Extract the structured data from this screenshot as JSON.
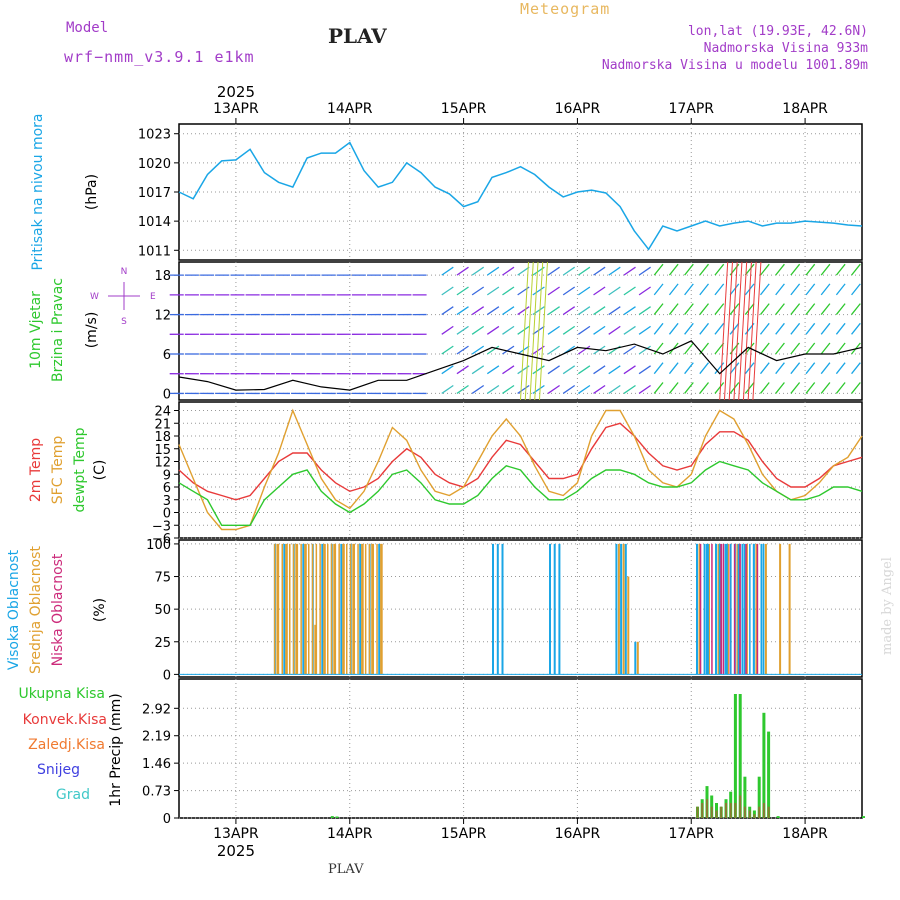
{
  "header": {
    "model_label": "Model",
    "model_name": "wrf−nmm_v3.9.1 e1km",
    "station": "PLAV",
    "meteogram": "Meteogram",
    "lonlat": "lon,lat (19.93E, 42.6N)",
    "altitude": "Nadmorska Visina 933m",
    "altitude_model": "Nadmorska Visina u modelu 1001.89m"
  },
  "footer": {
    "station": "PLAV",
    "credit": "made by Angel"
  },
  "time_axis": {
    "year": "2025",
    "days": [
      "13APR",
      "14APR",
      "15APR",
      "16APR",
      "17APR",
      "18APR"
    ],
    "start_hour": 0,
    "end_hour": 144,
    "first_day_offset_h": 12
  },
  "colors": {
    "pressure": "#1aa6e6",
    "temp2m": "#e83a3a",
    "sfctemp": "#e0a030",
    "dewpt": "#2ec82e",
    "cloud_high": "#1aa6e6",
    "cloud_mid": "#e0a030",
    "cloud_low": "#cc2a7a",
    "precip_total": "#2ec82e",
    "precip_conv": "#e83a3a",
    "precip_frozen": "#f07a30",
    "snow": "#4040e0",
    "hail": "#40c8c8",
    "wind": "#000000"
  },
  "panels": {
    "pressure": {
      "ylabel": "Pritisak na nivou mora",
      "unit": "(hPa)",
      "ticks": [
        "1011",
        "1014",
        "1017",
        "1020",
        "1023"
      ]
    },
    "wind": {
      "ylabel1": "10m Vjetar",
      "ylabel2": "Brzina i Pravac",
      "unit": "(m/s)",
      "ticks": [
        "0",
        "6",
        "12",
        "18"
      ],
      "compass": {
        "n": "N",
        "s": "S",
        "w": "W",
        "e": "E"
      }
    },
    "temp": {
      "ylabel1": "2m Temp",
      "ylabel2": "SFC Temp",
      "ylabel3": "dewpt Temp",
      "unit": "(C)",
      "ticks": [
        "−6",
        "−3",
        "0",
        "3",
        "6",
        "9",
        "12",
        "15",
        "18",
        "21",
        "24"
      ]
    },
    "cloud": {
      "ylabel1": "Visoka Oblacnost",
      "ylabel2": "Srednja Oblacnost",
      "ylabel3": "Niska Oblacnost",
      "unit": "(%)",
      "ticks": [
        "0",
        "25",
        "50",
        "75",
        "100"
      ]
    },
    "precip": {
      "ylabel": "1hr Precip (mm)",
      "ticks": [
        "0",
        "0.73",
        "1.46",
        "2.19",
        "2.92"
      ],
      "legend": [
        "Ukupna Kisa",
        "Konvek.Kisa",
        "Zaledj.Kisa",
        "Snijeg",
        "Grad"
      ]
    }
  },
  "chart_data": [
    {
      "type": "line",
      "title": "Pritisak na nivou mora",
      "ylabel": "(hPa)",
      "ylim": [
        1010,
        1024
      ],
      "x": [
        0,
        3,
        6,
        9,
        12,
        15,
        18,
        21,
        24,
        27,
        30,
        33,
        36,
        39,
        42,
        45,
        48,
        51,
        54,
        57,
        60,
        63,
        66,
        69,
        72,
        75,
        78,
        81,
        84,
        87,
        90,
        93,
        96,
        99,
        102,
        105,
        108,
        111,
        114,
        117,
        120,
        123,
        126,
        129,
        132,
        135,
        138,
        141,
        144
      ],
      "series": [
        {
          "name": "slp",
          "values": [
            1017,
            1016.3,
            1018.8,
            1020.2,
            1020.3,
            1021.4,
            1019,
            1018,
            1017.5,
            1020.5,
            1021,
            1021,
            1022.1,
            1019.2,
            1017.5,
            1018,
            1020,
            1019,
            1017.5,
            1016.8,
            1015.5,
            1016,
            1018.5,
            1019,
            1019.6,
            1018.8,
            1017.5,
            1016.5,
            1017,
            1017.2,
            1016.9,
            1015.5,
            1013,
            1011.1,
            1013.5,
            1013,
            1013.5,
            1014,
            1013.5,
            1013.8,
            1014,
            1013.5,
            1013.8,
            1013.8,
            1014,
            1013.9,
            1013.8,
            1013.6,
            1013.5
          ]
        }
      ]
    },
    {
      "type": "line",
      "title": "10m Vjetar Brzina i Pravac",
      "ylabel": "(m/s)",
      "ylim": [
        -1,
        20
      ],
      "x": [
        0,
        6,
        12,
        18,
        24,
        30,
        36,
        42,
        48,
        54,
        60,
        66,
        72,
        78,
        84,
        90,
        96,
        102,
        108,
        114,
        120,
        126,
        132,
        138,
        144
      ],
      "series": [
        {
          "name": "speed",
          "values": [
            2.5,
            1.8,
            0.5,
            0.6,
            2,
            1,
            0.5,
            2,
            2,
            3.5,
            5,
            7,
            6,
            5,
            7,
            6.5,
            7.5,
            6,
            8,
            3,
            7,
            5,
            6,
            6,
            7
          ]
        }
      ]
    },
    {
      "type": "line",
      "title": "2m Temp / SFC Temp / dewpt Temp",
      "ylabel": "(C)",
      "ylim": [
        -6,
        26
      ],
      "x": [
        0,
        3,
        6,
        9,
        12,
        15,
        18,
        21,
        24,
        27,
        30,
        33,
        36,
        39,
        42,
        45,
        48,
        51,
        54,
        57,
        60,
        63,
        66,
        69,
        72,
        75,
        78,
        81,
        84,
        87,
        90,
        93,
        96,
        99,
        102,
        105,
        108,
        111,
        114,
        117,
        120,
        123,
        126,
        129,
        132,
        135,
        138,
        141,
        144
      ],
      "series": [
        {
          "name": "2m Temp",
          "values": [
            10,
            7,
            5,
            4,
            3,
            4,
            8,
            12,
            14,
            14,
            10,
            7,
            5,
            6,
            8,
            12,
            15,
            13,
            9,
            7,
            6,
            8,
            13,
            17,
            16,
            12,
            8,
            8,
            9,
            15,
            20,
            21,
            18,
            14,
            11,
            10,
            11,
            16,
            19,
            19,
            17,
            12,
            8,
            6,
            6,
            8,
            11,
            12,
            13
          ]
        },
        {
          "name": "SFC Temp",
          "values": [
            16,
            8,
            0,
            -4,
            -4,
            -3,
            6,
            14,
            24,
            16,
            8,
            3,
            1,
            5,
            12,
            20,
            17,
            10,
            5,
            4,
            6,
            12,
            18,
            22,
            18,
            11,
            5,
            4,
            7,
            18,
            24,
            24,
            18,
            10,
            7,
            6,
            9,
            18,
            24,
            22,
            16,
            9,
            5,
            3,
            4,
            7,
            11,
            13,
            18
          ]
        },
        {
          "name": "dewpt Temp",
          "values": [
            7,
            5,
            3,
            -3,
            -3,
            -3,
            3,
            6,
            9,
            10,
            5,
            2,
            0,
            2,
            5,
            9,
            10,
            7,
            3,
            2,
            2,
            4,
            8,
            11,
            10,
            6,
            3,
            3,
            5,
            8,
            10,
            10,
            9,
            7,
            6,
            6,
            7,
            10,
            12,
            11,
            10,
            7,
            5,
            3,
            3,
            4,
            6,
            6,
            5
          ]
        }
      ]
    },
    {
      "type": "bar",
      "title": "Visoka / Srednja / Niska Oblacnost",
      "ylabel": "(%)",
      "ylim": [
        0,
        100
      ],
      "notes": "hourly cloud cover; high (blue) near 100% during hours 20-43, 66-68, 78-80, 92-96, 109-123, mid (orange) 100% during 20-43 and 109-118, low (magenta) small values",
      "x": [
        20,
        22,
        24,
        26,
        28,
        30,
        32,
        34,
        36,
        38,
        40,
        42,
        66,
        67,
        68,
        78,
        79,
        80,
        92,
        93,
        94,
        96,
        109,
        111,
        113,
        115,
        117,
        119,
        121,
        123,
        126,
        128
      ],
      "series": [
        {
          "name": "Visoka Oblacnost",
          "values": [
            100,
            100,
            100,
            100,
            100,
            100,
            100,
            100,
            100,
            100,
            100,
            100,
            100,
            100,
            100,
            100,
            100,
            100,
            100,
            100,
            100,
            25,
            100,
            100,
            100,
            100,
            100,
            100,
            100,
            100,
            0,
            0
          ]
        },
        {
          "name": "Srednja Oblacnost",
          "values": [
            100,
            100,
            100,
            100,
            38,
            100,
            100,
            100,
            100,
            100,
            100,
            100,
            0,
            0,
            0,
            0,
            0,
            0,
            100,
            100,
            75,
            25,
            100,
            100,
            100,
            100,
            100,
            100,
            100,
            100,
            100,
            100
          ]
        },
        {
          "name": "Niska Oblacnost",
          "values": [
            0,
            0,
            0,
            0,
            0,
            0,
            0,
            0,
            0,
            0,
            0,
            0,
            0,
            0,
            0,
            0,
            0,
            0,
            0,
            0,
            0,
            0,
            0,
            0,
            100,
            100,
            100,
            0,
            0,
            0,
            0,
            0
          ]
        }
      ]
    },
    {
      "type": "bar",
      "title": "1hr Precip",
      "ylabel": "(mm)",
      "ylim": [
        0,
        3.7
      ],
      "x": [
        32,
        33,
        109,
        110,
        111,
        112,
        113,
        114,
        115,
        116,
        117,
        118,
        119,
        120,
        121,
        122,
        123,
        124,
        125,
        126,
        144
      ],
      "series": [
        {
          "name": "Ukupna Kisa",
          "values": [
            0.05,
            0.04,
            0.3,
            0.5,
            0.85,
            0.6,
            0.4,
            0.3,
            0.5,
            0.7,
            3.3,
            3.3,
            1.1,
            0.3,
            0.2,
            1.1,
            2.8,
            2.3,
            0,
            0.05,
            0.05
          ]
        },
        {
          "name": "Konvek.Kisa",
          "values": [
            0,
            0,
            0.3,
            0.4,
            0.5,
            0.3,
            0.2,
            0.3,
            0.4,
            0.4,
            0.4,
            0.6,
            0.3,
            0.2,
            0.1,
            0.3,
            0.4,
            0.3,
            0,
            0,
            0
          ]
        }
      ]
    }
  ]
}
